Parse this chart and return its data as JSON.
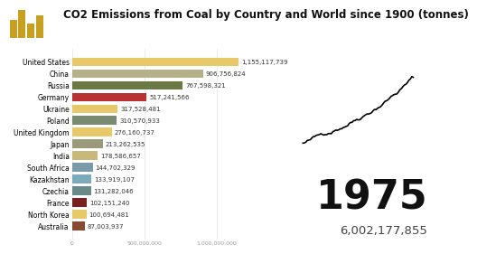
{
  "title": "CO2 Emissions from Coal by Country and World since 1900 (tonnes)",
  "year": "1975",
  "world_total": "6,002,177,855",
  "countries": [
    "United States",
    "China",
    "Russia",
    "Germany",
    "Ukraine",
    "Poland",
    "United Kingdom",
    "Japan",
    "India",
    "South Africa",
    "Kazakhstan",
    "Czechia",
    "France",
    "North Korea",
    "Australia"
  ],
  "values": [
    1155117739,
    906756824,
    767598321,
    517241566,
    317528481,
    310570933,
    276160737,
    213262535,
    178586657,
    144702329,
    133919107,
    131282046,
    102151240,
    100694481,
    87003937
  ],
  "bar_colors": [
    "#e8c96a",
    "#b5b08a",
    "#6b7a45",
    "#b83232",
    "#e8c96a",
    "#7a8a70",
    "#e8c96a",
    "#9a9a7a",
    "#c8b87a",
    "#7a9aaa",
    "#7aaabb",
    "#6a8a8a",
    "#7a2020",
    "#e8c96a",
    "#8a4a30"
  ],
  "xlim": [
    0,
    1500000000
  ],
  "xticks": [
    0,
    500000000,
    1000000000
  ],
  "xtick_labels": [
    "0",
    "500,000,000",
    "1,000,000,000"
  ],
  "bg_color": "#ffffff",
  "title_fontsize": 8.5,
  "bar_label_fontsize": 5.0,
  "country_fontsize": 5.5,
  "year_fontsize": 32,
  "total_fontsize": 9.5,
  "line_seed": 42,
  "logo_colors": [
    "#c8a020",
    "#c8a020",
    "#c8a020",
    "#c8a020"
  ]
}
